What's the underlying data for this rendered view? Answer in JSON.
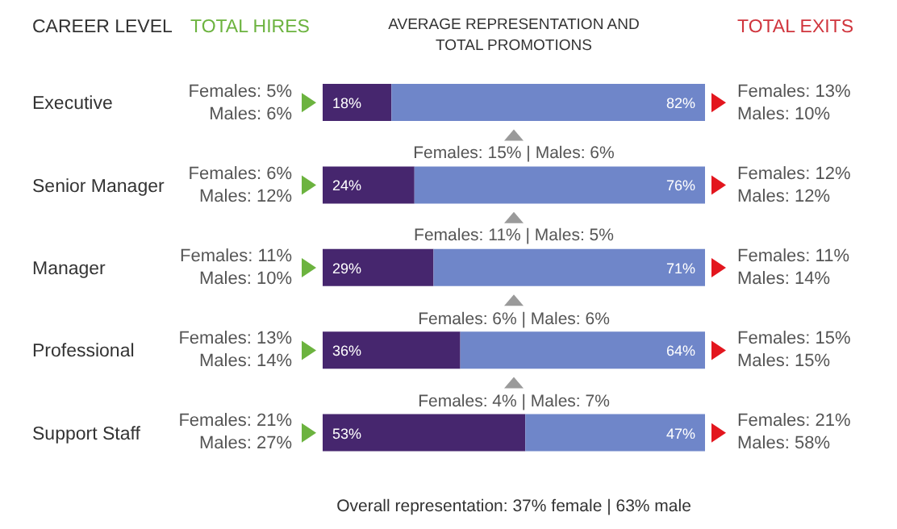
{
  "chart_data": {
    "type": "bar",
    "orientation": "horizontal",
    "stacked": true,
    "title": "AVERAGE REPRESENTATION AND TOTAL PROMOTIONS",
    "categories": [
      "Executive",
      "Senior Manager",
      "Manager",
      "Professional",
      "Support Staff"
    ],
    "series": [
      {
        "color": "#46266e",
        "values": [
          18,
          24,
          29,
          36,
          53
        ],
        "value_labels": [
          "18%",
          "24%",
          "29%",
          "36%",
          "53%"
        ]
      },
      {
        "color": "#6f86c9",
        "values": [
          82,
          76,
          71,
          64,
          47
        ],
        "value_labels": [
          "82%",
          "76%",
          "71%",
          "64%",
          "47%"
        ]
      }
    ],
    "annotations": [
      "CAREER LEVEL",
      "TOTAL HIRES",
      "TOTAL EXITS",
      "Females: 5%",
      "Males: 6%",
      "Females: 6%",
      "Males: 12%",
      "Females: 11%",
      "Males: 10%",
      "Females: 13%",
      "Males: 14%",
      "Females: 21%",
      "Males: 27%",
      "Females: 13%",
      "Males: 10%",
      "Females: 12%",
      "Males: 12%",
      "Females: 11%",
      "Males: 14%",
      "Females: 15%",
      "Males: 15%",
      "Females: 21%",
      "Males: 58%",
      "Females: 15% | Males: 6%",
      "Females: 11% | Males: 5%",
      "Females: 6% | Males: 6%",
      "Females: 4% | Males: 7%",
      "Overall representation: 37% female | 63% male"
    ]
  }
}
